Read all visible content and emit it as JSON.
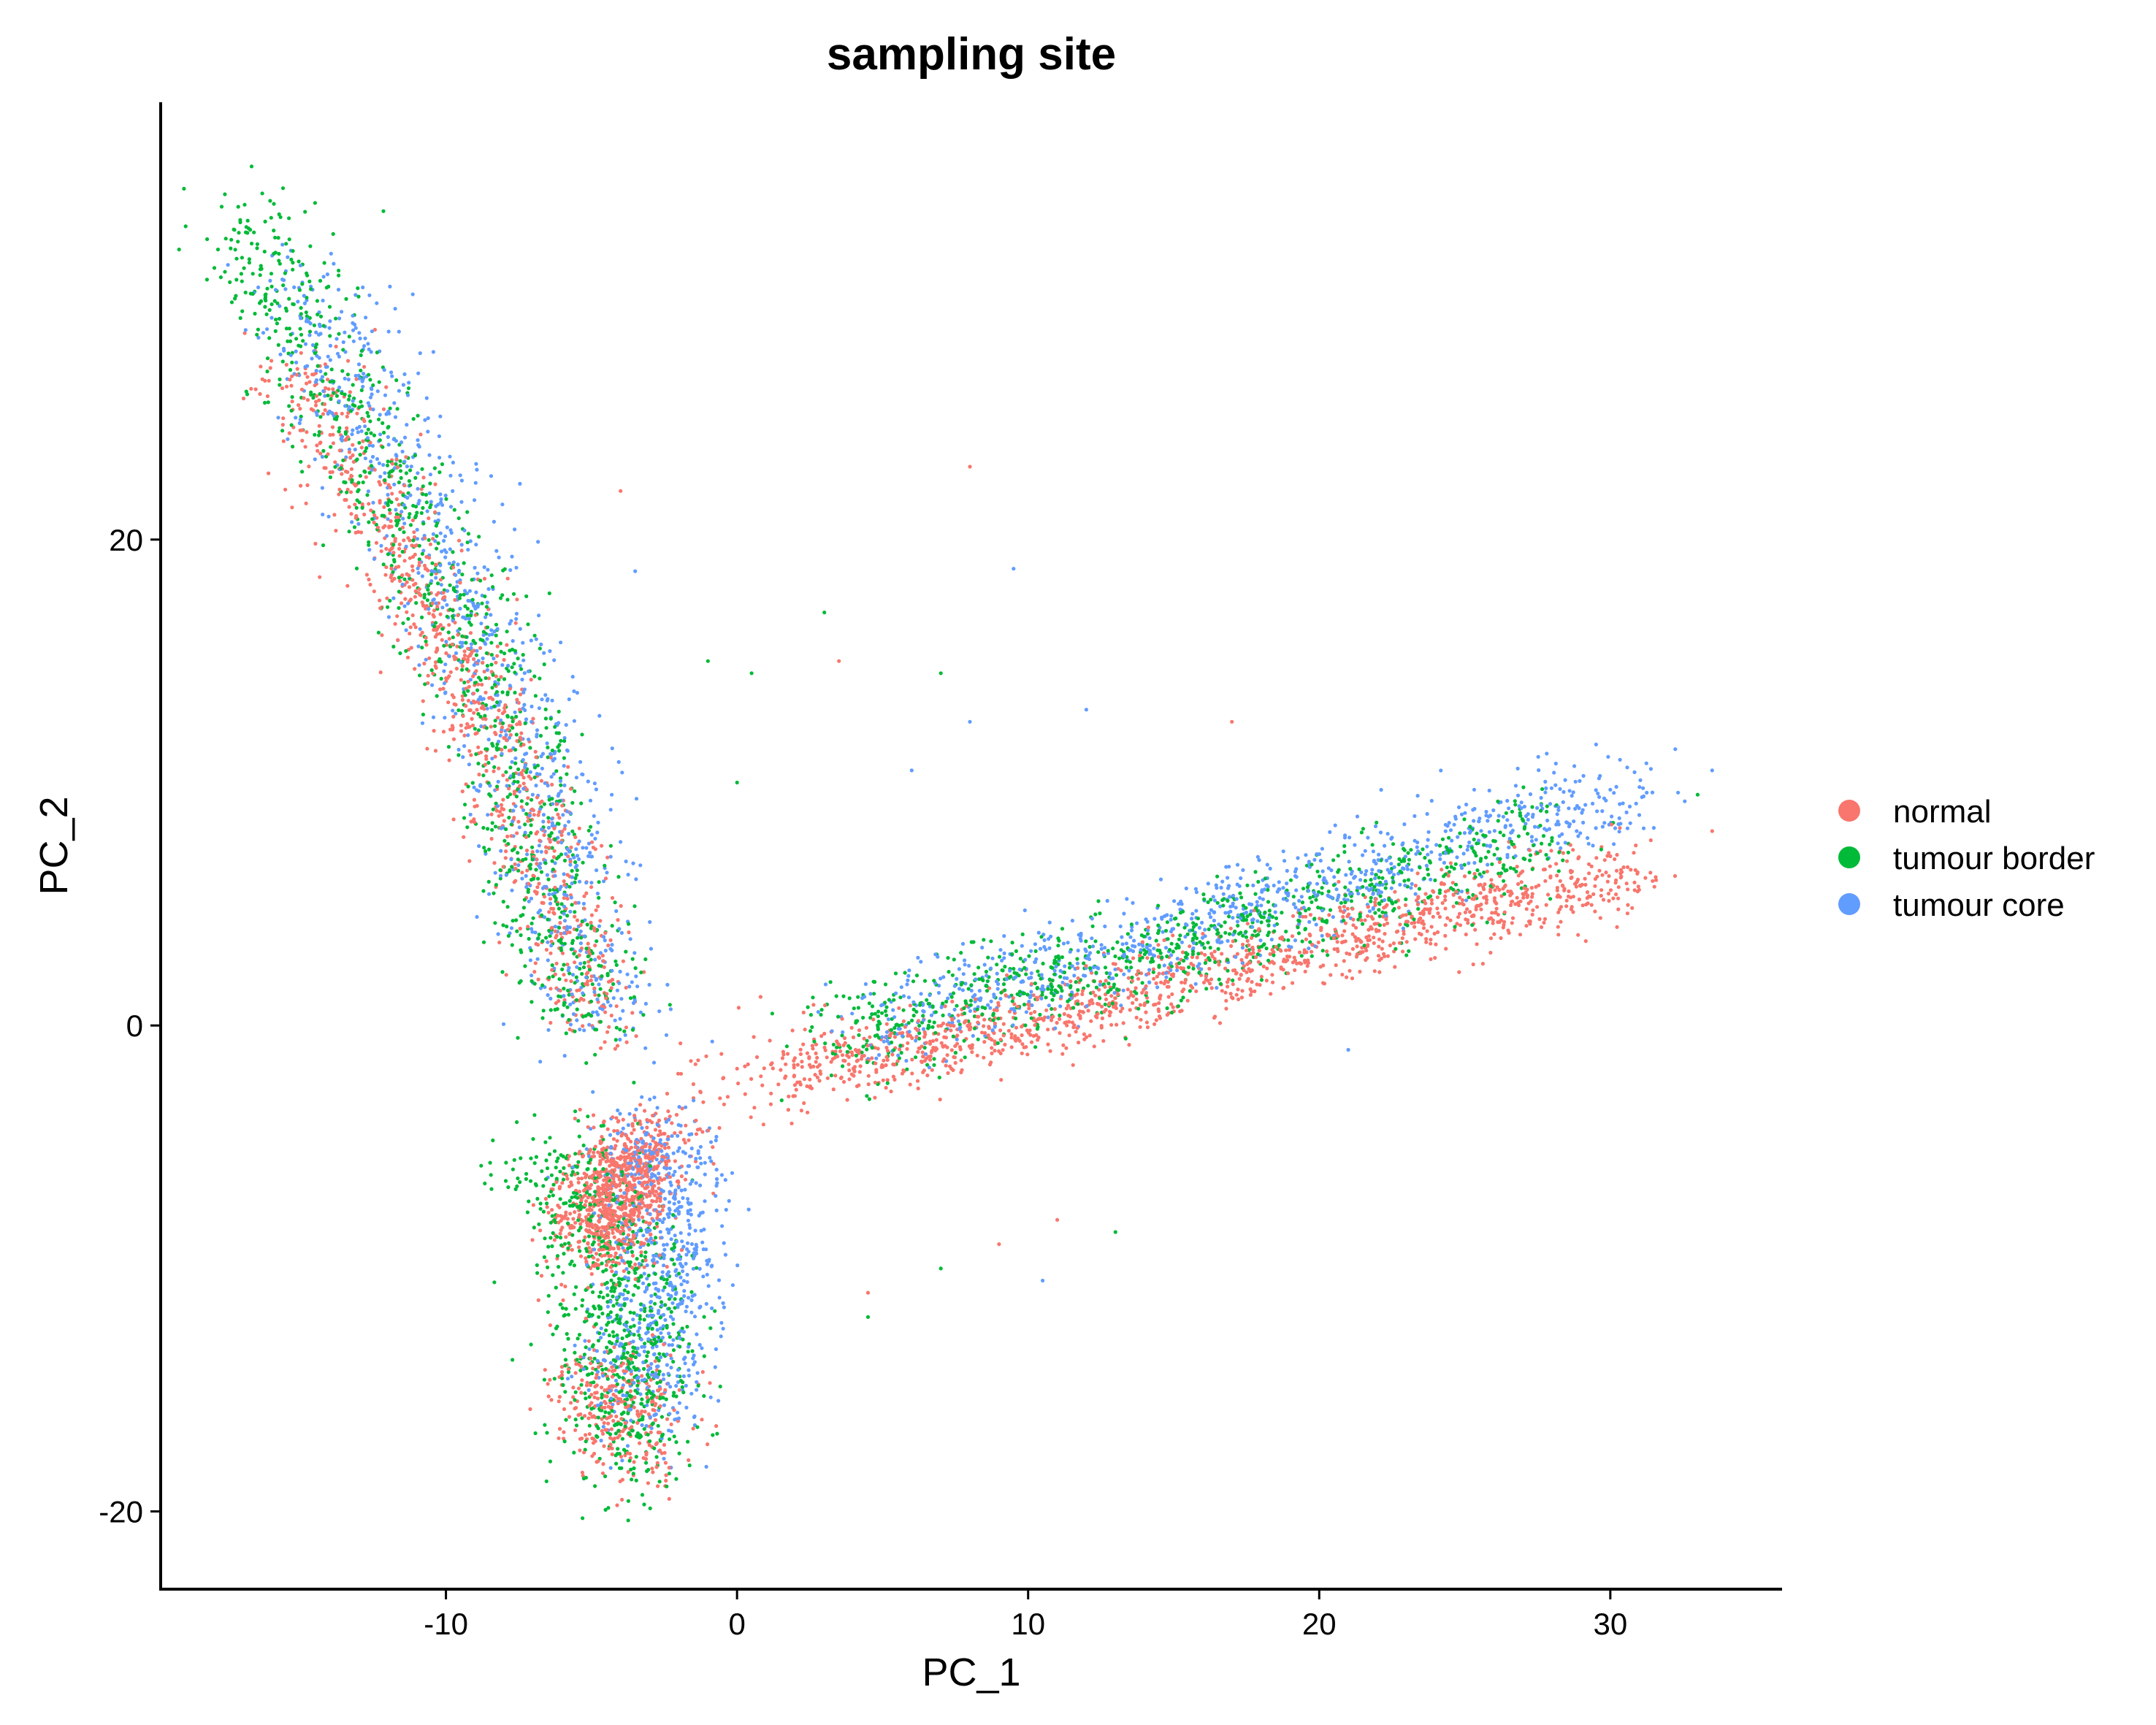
{
  "chart_data": {
    "type": "scatter",
    "title": "sampling site",
    "xlabel": "PC_1",
    "ylabel": "PC_2",
    "xlim": [
      -19.8,
      35.9
    ],
    "ylim": [
      -23.2,
      38.0
    ],
    "x_ticks": [
      -10,
      0,
      10,
      20,
      30
    ],
    "y_ticks": [
      -20,
      0,
      20
    ],
    "x_tick_labels": [
      "-10",
      "0",
      "10",
      "20",
      "30"
    ],
    "y_tick_labels": [
      "-20",
      "0",
      "20"
    ],
    "grid": false,
    "legend_position": "right",
    "series": [
      {
        "name": "normal",
        "color": "#F8766D",
        "clusters": [
          {
            "points": [
              [
                -15.0,
                27.0
              ],
              [
                -13.5,
                24.0
              ],
              [
                -12.0,
                20.5
              ],
              [
                -10.0,
                16.0
              ],
              [
                -8.0,
                11.0
              ],
              [
                -6.5,
                7.0
              ],
              [
                -5.5,
                3.0
              ],
              [
                -4.5,
                0.0
              ]
            ],
            "n": 900,
            "spread": 0.9
          },
          {
            "points": [
              [
                -4.6,
                -9.0
              ],
              [
                -4.0,
                -6.5
              ],
              [
                -3.2,
                -4.8
              ]
            ],
            "n": 900,
            "spread": 0.9
          },
          {
            "points": [
              [
                -4.5,
                -14.0
              ],
              [
                -3.5,
                -17.5
              ]
            ],
            "n": 300,
            "spread": 1.1
          },
          {
            "points": [
              [
                2.0,
                -1.5
              ],
              [
                6.0,
                -1.0
              ],
              [
                12.0,
                0.8
              ],
              [
                18.0,
                2.6
              ],
              [
                24.0,
                4.5
              ],
              [
                31.0,
                6.3
              ]
            ],
            "n": 1300,
            "spread": 0.8
          },
          {
            "points": [
              [
                -1.0,
                -3.0
              ],
              [
                1.5,
                -2.0
              ]
            ],
            "n": 60,
            "spread": 1.5
          }
        ],
        "outliers": [
          [
            8.0,
            23.0
          ],
          [
            -4.0,
            22.0
          ],
          [
            3.5,
            15.0
          ],
          [
            17.0,
            12.5
          ],
          [
            9.0,
            -9.0
          ],
          [
            4.5,
            -11.0
          ],
          [
            33.5,
            8.0
          ],
          [
            11.0,
            -8.0
          ]
        ]
      },
      {
        "name": "tumour border",
        "color": "#00BA38",
        "clusters": [
          {
            "points": [
              [
                -17.0,
                33.0
              ],
              [
                -15.5,
                30.0
              ],
              [
                -13.0,
                24.5
              ],
              [
                -11.0,
                20.0
              ],
              [
                -9.0,
                15.5
              ],
              [
                -8.0,
                12.0
              ],
              [
                -7.0,
                8.0
              ],
              [
                -6.0,
                3.0
              ],
              [
                -4.8,
                0.0
              ]
            ],
            "n": 1000,
            "spread": 1.1
          },
          {
            "points": [
              [
                -6.5,
                -5.5
              ],
              [
                -5.0,
                -8.0
              ],
              [
                -4.0,
                -11.0
              ],
              [
                -3.5,
                -14.0
              ],
              [
                -4.0,
                -18.0
              ]
            ],
            "n": 800,
            "spread": 1.2
          },
          {
            "points": [
              [
                3.0,
                -0.5
              ],
              [
                8.0,
                1.0
              ],
              [
                14.0,
                2.8
              ],
              [
                20.0,
                4.8
              ],
              [
                25.0,
                6.5
              ],
              [
                28.0,
                8.0
              ]
            ],
            "n": 900,
            "spread": 1.0
          }
        ],
        "outliers": [
          [
            3.0,
            17.0
          ],
          [
            -1.0,
            15.0
          ],
          [
            0.5,
            14.5
          ],
          [
            7.0,
            14.5
          ],
          [
            -13.0,
            30.0
          ],
          [
            13.0,
            -8.5
          ],
          [
            7.0,
            -10.0
          ],
          [
            4.5,
            -12.0
          ],
          [
            33.0,
            9.5
          ],
          [
            0.0,
            10.0
          ]
        ]
      },
      {
        "name": "tumour core",
        "color": "#619CFF",
        "clusters": [
          {
            "points": [
              [
                -15.0,
                30.5
              ],
              [
                -13.0,
                26.0
              ],
              [
                -11.0,
                21.0
              ],
              [
                -9.0,
                17.0
              ],
              [
                -7.5,
                13.0
              ],
              [
                -6.5,
                8.0
              ],
              [
                -5.5,
                3.5
              ],
              [
                -4.2,
                0.0
              ]
            ],
            "n": 900,
            "spread": 1.2
          },
          {
            "points": [
              [
                -3.0,
                -4.0
              ],
              [
                -2.5,
                -7.0
              ],
              [
                -2.5,
                -10.0
              ],
              [
                -3.0,
                -13.0
              ],
              [
                -3.0,
                -16.0
              ]
            ],
            "n": 700,
            "spread": 1.1
          },
          {
            "points": [
              [
                5.0,
                0.0
              ],
              [
                10.0,
                2.0
              ],
              [
                16.0,
                4.0
              ],
              [
                22.0,
                6.5
              ],
              [
                27.0,
                8.5
              ],
              [
                31.0,
                9.5
              ]
            ],
            "n": 900,
            "spread": 1.0
          }
        ],
        "outliers": [
          [
            9.5,
            18.8
          ],
          [
            -3.5,
            18.7
          ],
          [
            12.0,
            13.0
          ],
          [
            8.0,
            12.5
          ],
          [
            6.0,
            10.5
          ],
          [
            10.5,
            -10.5
          ],
          [
            21.0,
            -1.0
          ],
          [
            33.5,
            10.5
          ]
        ]
      }
    ]
  }
}
